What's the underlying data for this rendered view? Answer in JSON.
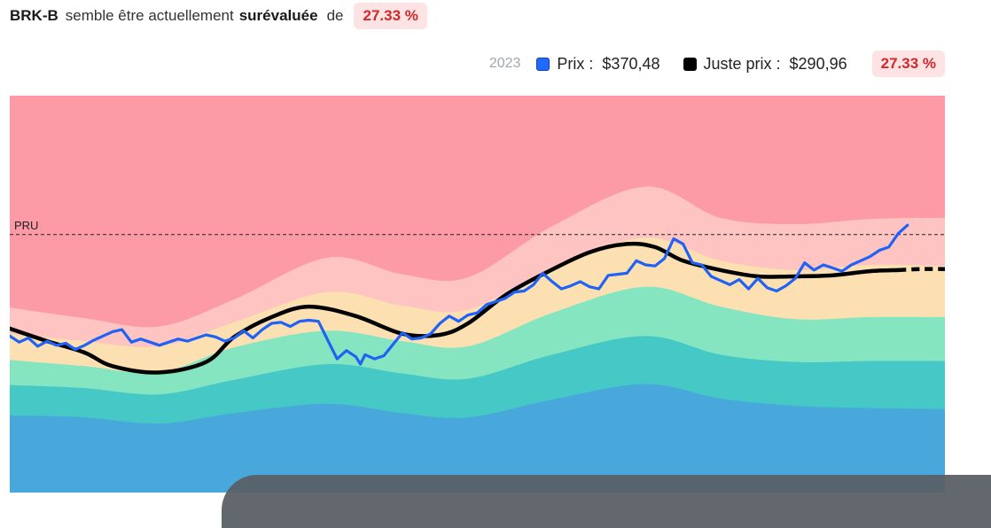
{
  "header": {
    "ticker": "BRK-B",
    "text_before": "semble être actuellement",
    "valuation_word": "surévaluée",
    "text_after": "de",
    "percent": "27.33 %"
  },
  "legend": {
    "year": "2023",
    "price_label": "Prix :",
    "price_value": "$370,48",
    "fair_label": "Juste prix :",
    "fair_value": "$290,96",
    "percent": "27.33 %"
  },
  "colors": {
    "band_top": "#fc9aa6",
    "band_2": "#fdc4c1",
    "band_3": "#fde0b1",
    "band_4": "#84e5c0",
    "band_5": "#45c8c6",
    "band_6": "#48a8dc",
    "price_line": "#1f62f5",
    "fair_line": "#000000",
    "badge_bg": "#fde3e3",
    "badge_text": "#d0282c"
  },
  "chart_data": {
    "type": "area",
    "ylim": [
      100,
      480
    ],
    "xlim": [
      0,
      1
    ],
    "reference_line": {
      "label": "PRU",
      "value": 347
    },
    "x": [
      0,
      0.08,
      0.16,
      0.24,
      0.34,
      0.42,
      0.49,
      0.58,
      0.68,
      0.76,
      0.84,
      0.92,
      1.0
    ],
    "bands": [
      {
        "name": "band_2",
        "lower_of": "band_3",
        "values": [
          277,
          267,
          259,
          285,
          325,
          309,
          306,
          355,
          393,
          363,
          357,
          362,
          363
        ]
      },
      {
        "name": "band_3",
        "values": [
          252,
          245,
          240,
          263,
          292,
          279,
          275,
          315,
          344,
          322,
          313,
          318,
          317
        ]
      },
      {
        "name": "band_4",
        "values": [
          227,
          221,
          215,
          239,
          255,
          245,
          240,
          272,
          297,
          278,
          266,
          268,
          268
        ]
      },
      {
        "name": "band_5",
        "values": [
          203,
          200,
          194,
          208,
          223,
          214,
          209,
          232,
          250,
          232,
          225,
          226,
          226
        ]
      },
      {
        "name": "band_6",
        "values": [
          174,
          172,
          166,
          176,
          185,
          176,
          172,
          189,
          204,
          190,
          183,
          181,
          180
        ]
      }
    ],
    "series": [
      {
        "x": [
          0,
          0.04,
          0.08,
          0.11,
          0.16,
          0.21,
          0.24,
          0.28,
          0.32,
          0.37,
          0.42,
          0.46,
          0.49,
          0.53,
          0.57,
          0.62,
          0.66,
          0.69,
          0.72,
          0.76,
          0.8,
          0.84,
          0.88,
          0.92,
          0.95,
          0.975,
          1.0
        ],
        "values": [
          257,
          245,
          234,
          221,
          215,
          225,
          249,
          268,
          278,
          269,
          252,
          251,
          262,
          289,
          309,
          330,
          338,
          335,
          322,
          313,
          307,
          307,
          308,
          312,
          313,
          314,
          314
        ],
        "dashed_from": 0.955
      },
      {
        "x": [
          0,
          0.01,
          0.02,
          0.03,
          0.04,
          0.05,
          0.06,
          0.07,
          0.08,
          0.09,
          0.1,
          0.11,
          0.12,
          0.13,
          0.14,
          0.15,
          0.16,
          0.17,
          0.18,
          0.19,
          0.2,
          0.21,
          0.22,
          0.23,
          0.24,
          0.25,
          0.26,
          0.27,
          0.28,
          0.29,
          0.3,
          0.31,
          0.32,
          0.33,
          0.34,
          0.35,
          0.36,
          0.37,
          0.375,
          0.38,
          0.39,
          0.4,
          0.41,
          0.42,
          0.43,
          0.44,
          0.45,
          0.46,
          0.47,
          0.48,
          0.49,
          0.5,
          0.51,
          0.52,
          0.53,
          0.54,
          0.55,
          0.56,
          0.57,
          0.58,
          0.59,
          0.6,
          0.61,
          0.62,
          0.63,
          0.64,
          0.65,
          0.66,
          0.67,
          0.68,
          0.69,
          0.7,
          0.71,
          0.72,
          0.73,
          0.74,
          0.75,
          0.76,
          0.77,
          0.78,
          0.79,
          0.8,
          0.81,
          0.82,
          0.83,
          0.84,
          0.85,
          0.86,
          0.87,
          0.88,
          0.89,
          0.9,
          0.91,
          0.92,
          0.93,
          0.94,
          0.95,
          0.96
        ],
        "values": [
          250,
          244,
          248,
          240,
          245,
          241,
          243,
          237,
          241,
          246,
          250,
          254,
          256,
          244,
          247,
          244,
          241,
          244,
          247,
          245,
          248,
          251,
          249,
          245,
          248,
          255,
          248,
          256,
          262,
          263,
          259,
          264,
          265,
          264,
          246,
          228,
          236,
          230,
          223,
          232,
          228,
          231,
          242,
          253,
          247,
          248,
          252,
          262,
          269,
          264,
          270,
          272,
          280,
          283,
          286,
          292,
          293,
          299,
          310,
          302,
          295,
          298,
          302,
          297,
          295,
          308,
          309,
          310,
          322,
          318,
          317,
          324,
          343,
          338,
          320,
          318,
          307,
          303,
          299,
          304,
          295,
          305,
          296,
          293,
          298,
          305,
          320,
          313,
          318,
          315,
          312,
          318,
          322,
          326,
          332,
          335,
          348,
          356
        ]
      }
    ]
  }
}
